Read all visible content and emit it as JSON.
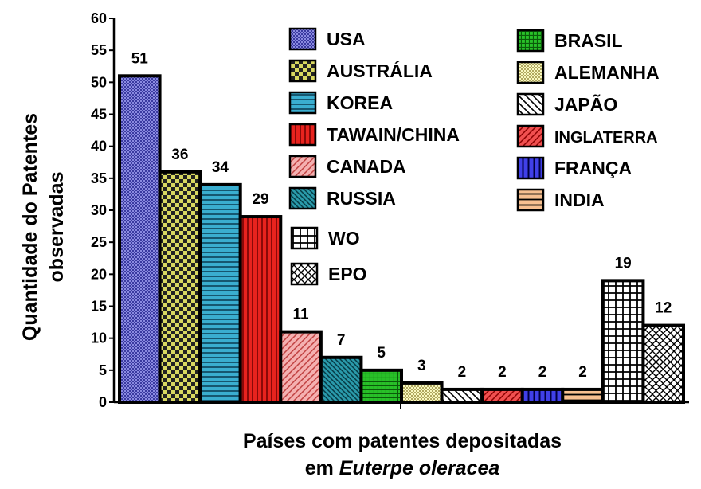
{
  "chart_data": {
    "type": "bar",
    "categories": [
      "USA",
      "AUSTRÁLIA",
      "KOREA",
      "TAWAIN/CHINA",
      "CANADA",
      "RUSSIA",
      "BRASIL",
      "ALEMANHA",
      "JAPÃO",
      "INGLATERRA",
      "FRANÇA",
      "INDIA",
      "WO",
      "EPO"
    ],
    "values": [
      51,
      36,
      34,
      29,
      11,
      7,
      5,
      3,
      2,
      2,
      2,
      2,
      19,
      12
    ],
    "data_labels": [
      "51",
      "36",
      "34",
      "29",
      "11",
      "7",
      "5",
      "3",
      "2",
      "2",
      "2",
      "2",
      "19",
      "12"
    ],
    "colors": [
      "#6a6ad0",
      "#c9c94a",
      "#3aaed0",
      "#e8231e",
      "#f0a0a0",
      "#2a9aaa",
      "#22b022",
      "#f0f0a8",
      "#ffffff",
      "#f05050",
      "#3a3ae0",
      "#f8c090",
      "#ffffff",
      "#ffffff"
    ],
    "patterns": [
      "dots",
      "checker",
      "hlines",
      "vlines",
      "diag",
      "diag",
      "grid",
      "dots",
      "diag-rev",
      "diag",
      "vlines",
      "hlines",
      "grid",
      "cross"
    ],
    "ylabel": [
      "Quantidade do Patentes",
      "observadas"
    ],
    "xlabel_line1": "Países com patentes depositadas",
    "xlabel_line2_prefix": "em ",
    "xlabel_line2_italic": "Euterpe oleracea",
    "yticks": [
      "0",
      "5",
      "10",
      "15",
      "20",
      "25",
      "30",
      "35",
      "40",
      "45",
      "50",
      "55",
      "60"
    ],
    "ylim": [
      0,
      60
    ],
    "grid": false,
    "legend_placement": "top-right",
    "legend": {
      "col1": [
        "USA",
        "AUSTRÁLIA",
        "KOREA",
        "TAWAIN/CHINA",
        "CANADA",
        "RUSSIA"
      ],
      "col2": [
        "BRASIL",
        "ALEMANHA",
        "JAPÃO",
        "INGLATERRA",
        "FRANÇA",
        "INDIA"
      ],
      "col3": [
        "WO",
        "EPO"
      ]
    }
  }
}
